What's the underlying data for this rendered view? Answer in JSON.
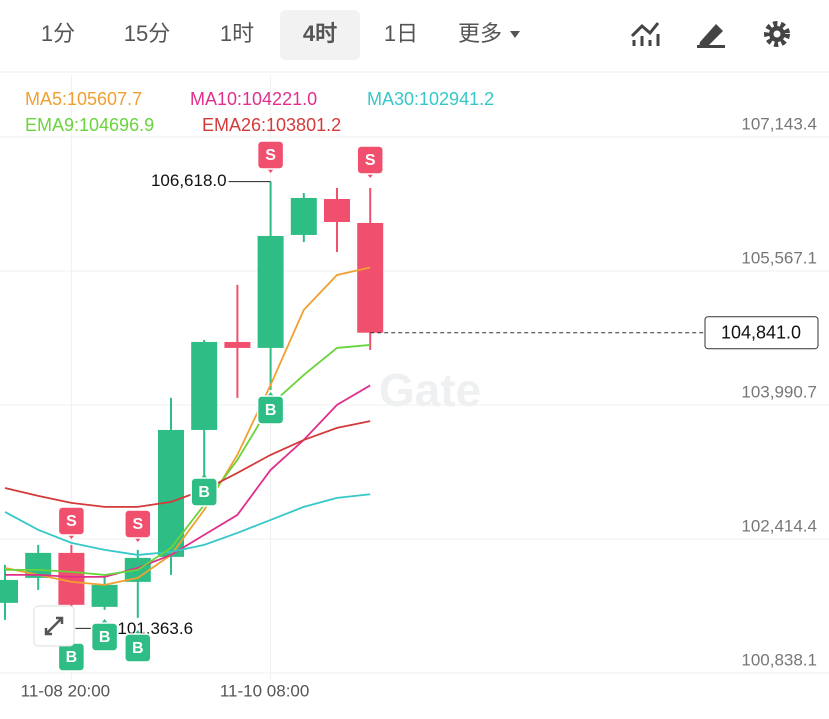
{
  "toolbar": {
    "tabs": [
      "1分",
      "15分",
      "1时",
      "4时",
      "1日",
      "更多"
    ],
    "selected": 3
  },
  "chart_data": {
    "type": "candlestick",
    "categories": [
      null,
      null,
      "11-08 20:00",
      null,
      null,
      null,
      null,
      null,
      "11-10 08:00",
      null,
      null,
      null
    ],
    "open": [
      101663,
      101957,
      102251,
      101616,
      101910,
      102204,
      103697,
      104732,
      104662,
      105991,
      106414,
      106132
    ],
    "high": [
      102110,
      102345,
      102345,
      101992,
      102286,
      104074,
      104756,
      105403,
      106618.0,
      106484,
      106543,
      106543
    ],
    "low": [
      101463,
      101816,
      101363.6,
      101581,
      101486,
      101992,
      103133,
      104074,
      104168,
      105908,
      105791,
      104638
    ],
    "close": [
      101933,
      102251,
      101640,
      101875,
      102192,
      103697,
      104732,
      104662,
      105979,
      106426,
      106143,
      104841.0
    ],
    "up_color": "#2ebd85",
    "down_color": "#f0506e",
    "series": [
      {
        "name": "MA5:105607.7",
        "color": "#f0a030",
        "values": [
          102075,
          101992,
          101910,
          101875,
          101957,
          102227,
          102757,
          103404,
          104227,
          105109,
          105520,
          105607.7
        ]
      },
      {
        "name": "MA10:104221.0",
        "color": "#e0308c",
        "values": [
          101992,
          101992,
          101969,
          101969,
          102075,
          102227,
          102463,
          102698,
          103227,
          103580,
          103992,
          104221.0
        ]
      },
      {
        "name": "MA30:102941.2",
        "color": "#36c8c8",
        "values": [
          102733,
          102522,
          102369,
          102286,
          102227,
          102263,
          102345,
          102486,
          102639,
          102792,
          102898,
          102941.2
        ]
      },
      {
        "name": "EMA9:104696.9",
        "color": "#6ad43c",
        "values": [
          102051,
          102051,
          102028,
          101992,
          102051,
          102310,
          102816,
          103345,
          103992,
          104344,
          104662,
          104696.9
        ]
      },
      {
        "name": "EMA26:103801.2",
        "color": "#d43a3a",
        "values": [
          103015,
          102921,
          102839,
          102792,
          102792,
          102851,
          102992,
          103192,
          103404,
          103580,
          103721,
          103801.2
        ]
      }
    ],
    "ylim": [
      100755.8,
      107872.4
    ],
    "yticks": [
      {
        "value": 107143.4,
        "label": "107,143.4"
      },
      {
        "value": 105567.1,
        "label": "105,567.1"
      },
      {
        "value": 103990.7,
        "label": "103,990.7"
      },
      {
        "value": 102414.4,
        "label": "102,414.4"
      },
      {
        "value": 100838.1,
        "label": "100,838.1"
      }
    ],
    "grid": true,
    "high_label": {
      "value": 106618.0,
      "label": "106,618.0"
    },
    "low_label": {
      "value": 101363.6,
      "label": "101,363.6"
    },
    "last_price": {
      "value": 104841.0,
      "label": "104,841.0"
    },
    "signals": [
      "S",
      "S",
      "S",
      "S",
      "B",
      "B",
      "B",
      "B",
      "B"
    ],
    "watermark": "Gate"
  }
}
